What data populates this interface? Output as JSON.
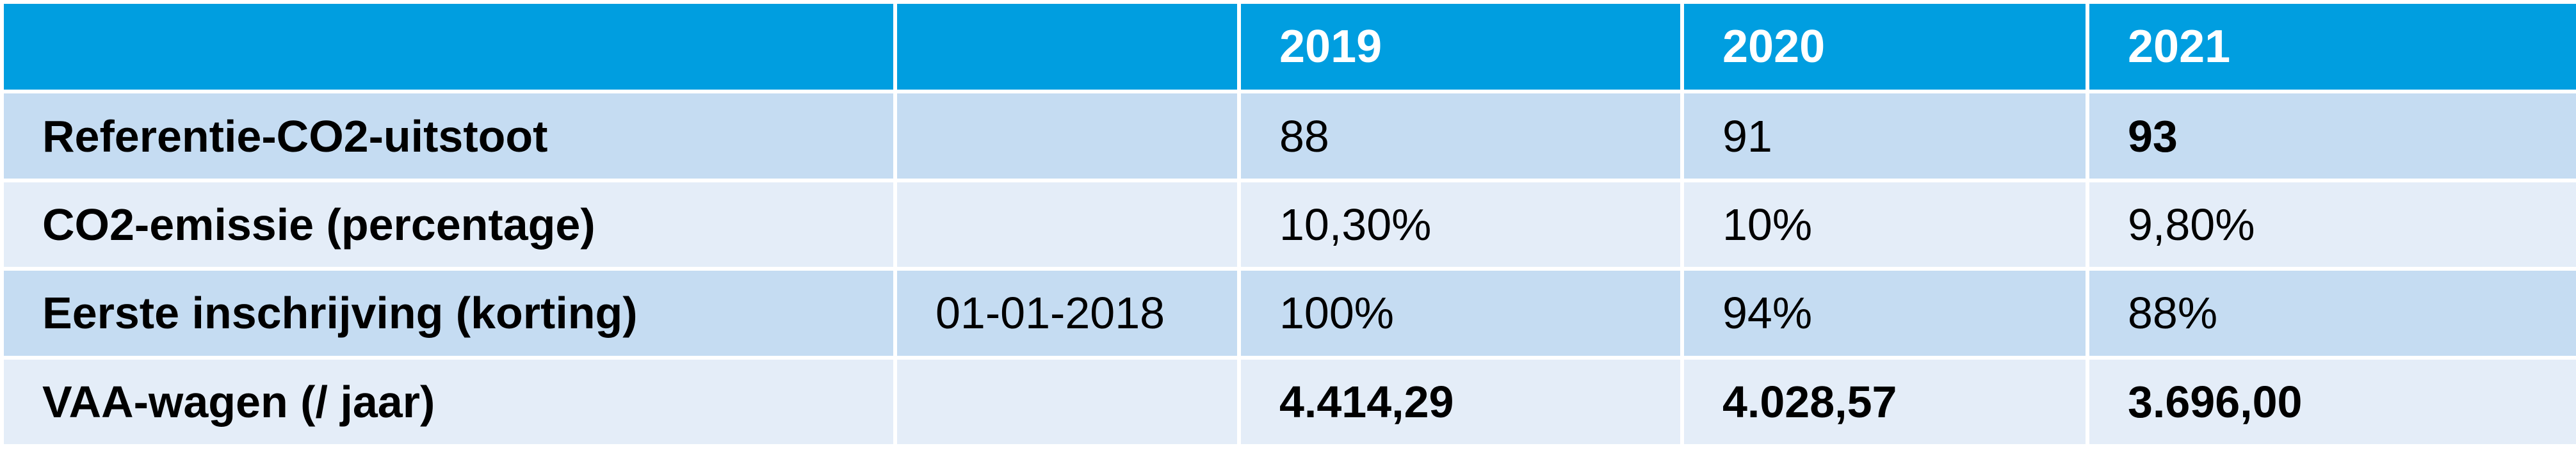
{
  "header": {
    "col_label": "",
    "col_date": "",
    "years": [
      "2019",
      "2020",
      "2021"
    ]
  },
  "rows": [
    {
      "label": "Referentie-CO2-uitstoot",
      "date": "",
      "values": [
        "88",
        "91",
        "93"
      ],
      "bold_values": [
        false,
        false,
        true
      ]
    },
    {
      "label": "CO2-emissie (percentage)",
      "date": "",
      "values": [
        "10,30%",
        "10%",
        "9,80%"
      ],
      "bold_values": [
        false,
        false,
        false
      ]
    },
    {
      "label": "Eerste inschrijving (korting)",
      "date": "01-01-2018",
      "values": [
        "100%",
        "94%",
        "88%"
      ],
      "bold_values": [
        false,
        false,
        false
      ]
    },
    {
      "label": "VAA-wagen (/ jaar)",
      "date": "",
      "values": [
        "4.414,29",
        "4.028,57",
        "3.696,00"
      ],
      "bold_values": [
        true,
        true,
        true
      ]
    }
  ],
  "colors": {
    "header_bg": "#009ee0",
    "header_text": "#ffffff",
    "row_dark": "#c5dcf2",
    "row_light": "#e4edf8"
  }
}
